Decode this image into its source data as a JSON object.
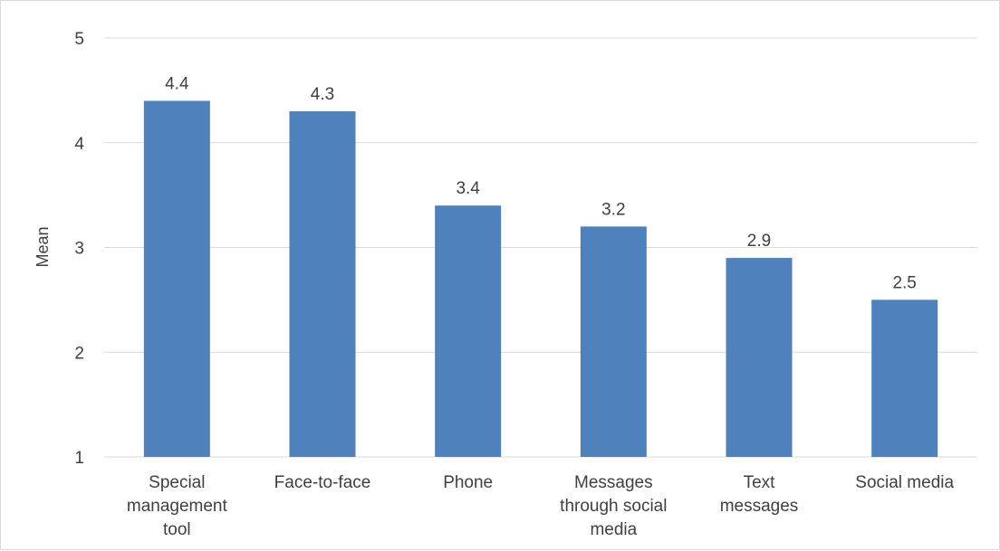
{
  "chart_data": {
    "type": "bar",
    "title": "",
    "xlabel": "",
    "ylabel": "Mean",
    "ylim": [
      1,
      5
    ],
    "yticks": [
      1,
      2,
      3,
      4,
      5
    ],
    "grid": true,
    "legend": "none",
    "categories": [
      [
        "Special",
        "management",
        "tool"
      ],
      [
        "Face-to-face"
      ],
      [
        "Phone"
      ],
      [
        "Messages",
        "through social",
        "media"
      ],
      [
        "Text",
        "messages"
      ],
      [
        "Social media"
      ]
    ],
    "values": [
      4.4,
      4.3,
      3.4,
      3.2,
      2.9,
      2.5
    ],
    "data_labels": [
      "4.4",
      "4.3",
      "3.4",
      "3.2",
      "2.9",
      "2.5"
    ],
    "bar_color": "#4f81bd",
    "grid_color": "#d9d9d9"
  }
}
